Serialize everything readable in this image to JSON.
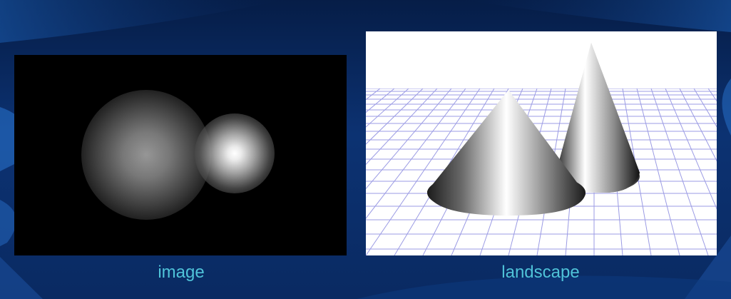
{
  "panels": {
    "left": {
      "caption": "image"
    },
    "right": {
      "caption": "landscape"
    }
  },
  "colors": {
    "background": "#0a2a5c",
    "caption": "#4fc3d9",
    "grid": "#8a8ae0"
  }
}
